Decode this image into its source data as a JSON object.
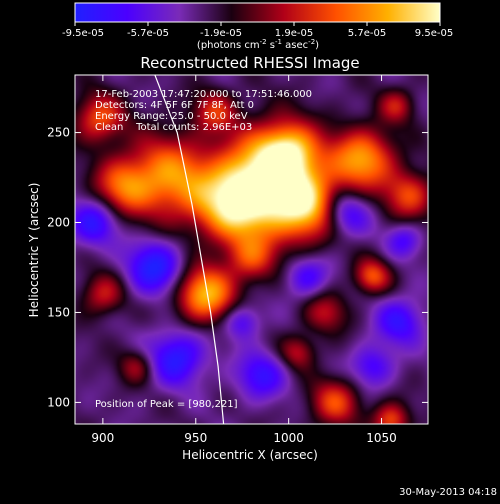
{
  "chart_data": {
    "type": "heatmap",
    "title": "Reconstructed RHESSI Image",
    "xlabel": "Heliocentric X (arcsec)",
    "ylabel": "Heliocentric Y (arcsec)",
    "xlim": [
      885,
      1075
    ],
    "ylim": [
      88,
      282
    ],
    "x_ticks": [
      900,
      950,
      1000,
      1050
    ],
    "y_ticks": [
      100,
      150,
      200,
      250
    ],
    "colorbar": {
      "ticks": [
        "-9.5e-05",
        "-5.7e-05",
        "-1.9e-05",
        "1.9e-05",
        "5.7e-05",
        "9.5e-05"
      ],
      "label_parts": [
        "(photons cm",
        "-2",
        " s",
        "-1",
        " asec",
        "-2",
        ")"
      ],
      "colors": [
        "#2020ff",
        "#4b00ff",
        "#7a2bb7",
        "#1a0010",
        "#b00018",
        "#ff5000",
        "#ffb000",
        "#ffffc8"
      ]
    },
    "annotations": [
      "17-Feb-2003 17:47:20.000 to 17:51:46.000",
      "Detectors: 4F 5F 6F 7F 8F, Att 0",
      "Energy Range: 25.0 - 50.0 keV",
      "Clean    Total counts: 2.96E+03"
    ],
    "peak_label": "Position of Peak = [980,221]",
    "footer_date": "30-May-2013 04:18",
    "limb_curve": [
      [
        928,
        282
      ],
      [
        940,
        250
      ],
      [
        948,
        210
      ],
      [
        953,
        180
      ],
      [
        958,
        150
      ],
      [
        962,
        120
      ],
      [
        965,
        88
      ]
    ],
    "bright_blobs": [
      {
        "x": 990,
        "y": 225,
        "r": 28,
        "v": 1.0
      },
      {
        "x": 970,
        "y": 210,
        "r": 22,
        "v": 0.85
      },
      {
        "x": 1010,
        "y": 208,
        "r": 20,
        "v": 0.75
      },
      {
        "x": 1000,
        "y": 240,
        "r": 16,
        "v": 0.65
      },
      {
        "x": 1040,
        "y": 235,
        "r": 18,
        "v": 0.8
      },
      {
        "x": 935,
        "y": 225,
        "r": 24,
        "v": 0.75
      },
      {
        "x": 955,
        "y": 160,
        "r": 16,
        "v": 0.9
      },
      {
        "x": 910,
        "y": 220,
        "r": 16,
        "v": 0.55
      },
      {
        "x": 898,
        "y": 258,
        "r": 14,
        "v": 0.6
      },
      {
        "x": 1045,
        "y": 170,
        "r": 10,
        "v": 0.6
      },
      {
        "x": 1025,
        "y": 100,
        "r": 14,
        "v": 0.55
      },
      {
        "x": 1055,
        "y": 90,
        "r": 10,
        "v": 0.6
      },
      {
        "x": 1065,
        "y": 215,
        "r": 14,
        "v": 0.55
      },
      {
        "x": 980,
        "y": 180,
        "r": 14,
        "v": 0.5
      },
      {
        "x": 1020,
        "y": 150,
        "r": 12,
        "v": 0.4
      },
      {
        "x": 900,
        "y": 160,
        "r": 12,
        "v": 0.45
      },
      {
        "x": 960,
        "y": 262,
        "r": 12,
        "v": 0.45
      },
      {
        "x": 1058,
        "y": 265,
        "r": 10,
        "v": 0.4
      },
      {
        "x": 1005,
        "y": 128,
        "r": 10,
        "v": 0.4
      },
      {
        "x": 918,
        "y": 120,
        "r": 10,
        "v": 0.35
      }
    ],
    "dark_blobs": [
      {
        "x": 928,
        "y": 175,
        "r": 16,
        "v": -0.6
      },
      {
        "x": 895,
        "y": 200,
        "r": 14,
        "v": -0.5
      },
      {
        "x": 940,
        "y": 125,
        "r": 16,
        "v": -0.55
      },
      {
        "x": 1030,
        "y": 205,
        "r": 14,
        "v": -0.55
      },
      {
        "x": 1010,
        "y": 170,
        "r": 12,
        "v": -0.4
      },
      {
        "x": 985,
        "y": 115,
        "r": 14,
        "v": -0.45
      },
      {
        "x": 1060,
        "y": 145,
        "r": 14,
        "v": -0.45
      },
      {
        "x": 1045,
        "y": 120,
        "r": 12,
        "v": -0.4
      },
      {
        "x": 975,
        "y": 145,
        "r": 10,
        "v": -0.4
      },
      {
        "x": 1062,
        "y": 190,
        "r": 10,
        "v": -0.35
      }
    ]
  }
}
